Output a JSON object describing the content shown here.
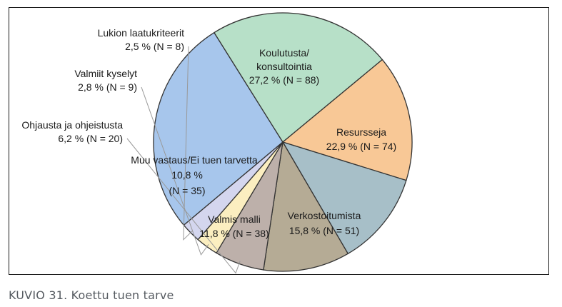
{
  "caption": "KUVIO 31. Koettu tuen tarve",
  "colors": {
    "slice_outline": "#333333",
    "leader_line": "#999999",
    "caption_text": "#555a60"
  },
  "chart_data": {
    "type": "pie",
    "start": "clockwise from upper-left (Koulutusta/konsultointia starts near 11 o'clock)",
    "slices": [
      {
        "label": [
          "Koulutusta/",
          "konsultointia"
        ],
        "value_text": "27,2 % (N = 88)",
        "percent": 27.2,
        "n": 88,
        "color": "#a7c6ec"
      },
      {
        "label": [
          "Resursseja"
        ],
        "value_text": "22,9 % (N = 74)",
        "percent": 22.9,
        "n": 74,
        "color": "#b7e0c8"
      },
      {
        "label": [
          "Verkostoitumista"
        ],
        "value_text": "15,8 % (N = 51)",
        "percent": 15.8,
        "n": 51,
        "color": "#f8c896"
      },
      {
        "label": [
          "Valmis malli"
        ],
        "value_text": "11,8 % (N = 38)",
        "percent": 11.8,
        "n": 38,
        "color": "#a7bfc8"
      },
      {
        "label": [
          "Muu vastaus/Ei tuen tarvetta",
          "10,8 %"
        ],
        "value_text": "(N = 35)",
        "percent": 10.8,
        "n": 35,
        "color": "#b5ab95"
      },
      {
        "label": [
          "Ohjausta ja ohjeistusta"
        ],
        "value_text": "6,2 % (N = 20)",
        "percent": 6.2,
        "n": 20,
        "color": "#bdb0aa"
      },
      {
        "label": [
          "Valmiit kyselyt"
        ],
        "value_text": "2,8 % (N = 9)",
        "percent": 2.8,
        "n": 9,
        "color": "#fbeec0"
      },
      {
        "label": [
          "Lukion laatukriteerit"
        ],
        "value_text": "2,5 % (N = 8)",
        "percent": 2.5,
        "n": 8,
        "color": "#d4d6ee"
      }
    ]
  }
}
